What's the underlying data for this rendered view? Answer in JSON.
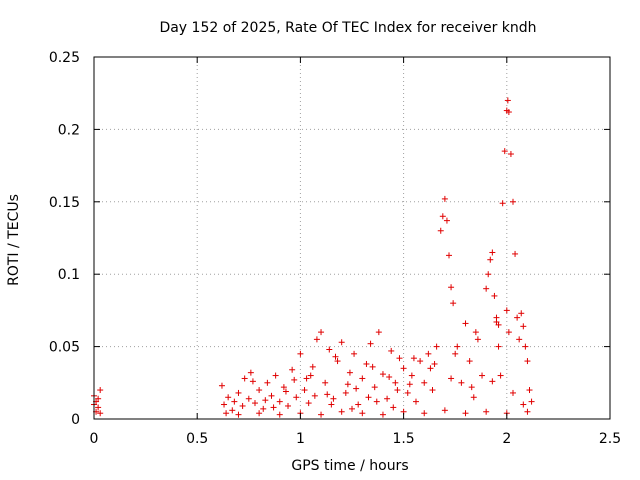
{
  "chart_data": {
    "type": "scatter",
    "title": "Day 152 of 2025, Rate Of TEC Index for receiver kndh",
    "xlabel": "GPS time / hours",
    "ylabel": "ROTI / TECUs",
    "xlim": [
      0,
      2.5
    ],
    "ylim": [
      0,
      0.25
    ],
    "xticks": [
      "0",
      "0.5",
      "1",
      "1.5",
      "2",
      "2.5"
    ],
    "yticks": [
      "0",
      "0.05",
      "0.1",
      "0.15",
      "0.2",
      "0.25"
    ],
    "grid": true,
    "marker": "plus",
    "color": "#e00000",
    "points": [
      [
        0.0,
        0.016
      ],
      [
        0.01,
        0.012
      ],
      [
        0.02,
        0.008
      ],
      [
        0.01,
        0.005
      ],
      [
        0.03,
        0.02
      ],
      [
        0.02,
        0.014
      ],
      [
        0.0,
        0.01
      ],
      [
        0.03,
        0.004
      ],
      [
        0.62,
        0.023
      ],
      [
        0.63,
        0.01
      ],
      [
        0.65,
        0.015
      ],
      [
        0.67,
        0.006
      ],
      [
        0.68,
        0.012
      ],
      [
        0.7,
        0.018
      ],
      [
        0.72,
        0.009
      ],
      [
        0.73,
        0.028
      ],
      [
        0.75,
        0.014
      ],
      [
        0.76,
        0.032
      ],
      [
        0.78,
        0.011
      ],
      [
        0.8,
        0.02
      ],
      [
        0.82,
        0.007
      ],
      [
        0.84,
        0.025
      ],
      [
        0.86,
        0.016
      ],
      [
        0.88,
        0.03
      ],
      [
        0.9,
        0.012
      ],
      [
        0.92,
        0.022
      ],
      [
        0.94,
        0.009
      ],
      [
        0.96,
        0.034
      ],
      [
        0.98,
        0.015
      ],
      [
        1.0,
        0.045
      ],
      [
        1.02,
        0.02
      ],
      [
        1.04,
        0.011
      ],
      [
        1.06,
        0.036
      ],
      [
        1.08,
        0.055
      ],
      [
        1.1,
        0.06
      ],
      [
        1.12,
        0.025
      ],
      [
        1.14,
        0.048
      ],
      [
        1.16,
        0.014
      ],
      [
        1.18,
        0.04
      ],
      [
        1.2,
        0.053
      ],
      [
        1.22,
        0.018
      ],
      [
        1.24,
        0.032
      ],
      [
        1.26,
        0.045
      ],
      [
        1.28,
        0.01
      ],
      [
        1.3,
        0.028
      ],
      [
        1.32,
        0.038
      ],
      [
        1.34,
        0.052
      ],
      [
        1.36,
        0.022
      ],
      [
        1.38,
        0.06
      ],
      [
        1.4,
        0.031
      ],
      [
        1.42,
        0.014
      ],
      [
        1.44,
        0.047
      ],
      [
        1.46,
        0.025
      ],
      [
        1.48,
        0.042
      ],
      [
        1.5,
        0.035
      ],
      [
        1.52,
        0.018
      ],
      [
        1.54,
        0.03
      ],
      [
        1.56,
        0.012
      ],
      [
        1.58,
        0.04
      ],
      [
        1.6,
        0.025
      ],
      [
        1.62,
        0.045
      ],
      [
        1.64,
        0.02
      ],
      [
        1.66,
        0.05
      ],
      [
        1.68,
        0.13
      ],
      [
        1.69,
        0.14
      ],
      [
        1.7,
        0.152
      ],
      [
        1.71,
        0.137
      ],
      [
        1.72,
        0.113
      ],
      [
        1.73,
        0.091
      ],
      [
        1.74,
        0.08
      ],
      [
        1.76,
        0.05
      ],
      [
        1.78,
        0.025
      ],
      [
        1.8,
        0.066
      ],
      [
        1.82,
        0.04
      ],
      [
        1.84,
        0.015
      ],
      [
        1.86,
        0.055
      ],
      [
        1.88,
        0.03
      ],
      [
        1.9,
        0.09
      ],
      [
        1.91,
        0.1
      ],
      [
        1.92,
        0.11
      ],
      [
        1.93,
        0.115
      ],
      [
        1.94,
        0.085
      ],
      [
        1.95,
        0.067
      ],
      [
        1.96,
        0.05
      ],
      [
        1.97,
        0.03
      ],
      [
        1.98,
        0.149
      ],
      [
        1.99,
        0.185
      ],
      [
        2.0,
        0.213
      ],
      [
        2.005,
        0.22
      ],
      [
        2.01,
        0.212
      ],
      [
        2.02,
        0.183
      ],
      [
        2.03,
        0.15
      ],
      [
        2.04,
        0.114
      ],
      [
        2.05,
        0.07
      ],
      [
        2.06,
        0.055
      ],
      [
        2.07,
        0.073
      ],
      [
        2.08,
        0.064
      ],
      [
        2.09,
        0.05
      ],
      [
        2.1,
        0.04
      ],
      [
        2.11,
        0.02
      ],
      [
        2.12,
        0.012
      ],
      [
        2.0,
        0.075
      ],
      [
        2.01,
        0.06
      ],
      [
        1.96,
        0.065
      ],
      [
        0.64,
        0.004
      ],
      [
        0.7,
        0.003
      ],
      [
        0.8,
        0.004
      ],
      [
        0.9,
        0.003
      ],
      [
        1.0,
        0.004
      ],
      [
        1.1,
        0.003
      ],
      [
        1.2,
        0.005
      ],
      [
        1.3,
        0.004
      ],
      [
        1.4,
        0.003
      ],
      [
        1.5,
        0.005
      ],
      [
        1.6,
        0.004
      ],
      [
        1.7,
        0.006
      ],
      [
        1.8,
        0.004
      ],
      [
        1.9,
        0.005
      ],
      [
        2.0,
        0.004
      ],
      [
        2.1,
        0.005
      ],
      [
        0.77,
        0.026
      ],
      [
        0.83,
        0.013
      ],
      [
        0.93,
        0.019
      ],
      [
        1.03,
        0.028
      ],
      [
        1.13,
        0.017
      ],
      [
        1.23,
        0.024
      ],
      [
        1.33,
        0.015
      ],
      [
        1.43,
        0.029
      ],
      [
        1.53,
        0.024
      ],
      [
        1.63,
        0.035
      ],
      [
        1.73,
        0.028
      ],
      [
        1.83,
        0.022
      ],
      [
        1.93,
        0.026
      ],
      [
        2.03,
        0.018
      ],
      [
        2.08,
        0.01
      ],
      [
        1.45,
        0.008
      ],
      [
        1.55,
        0.042
      ],
      [
        1.65,
        0.038
      ],
      [
        1.75,
        0.045
      ],
      [
        1.85,
        0.06
      ],
      [
        1.95,
        0.07
      ],
      [
        1.05,
        0.03
      ],
      [
        1.15,
        0.01
      ],
      [
        1.25,
        0.007
      ],
      [
        1.35,
        0.036
      ],
      [
        0.87,
        0.008
      ],
      [
        0.97,
        0.027
      ],
      [
        1.07,
        0.016
      ],
      [
        1.17,
        0.043
      ],
      [
        1.27,
        0.021
      ],
      [
        1.37,
        0.012
      ],
      [
        1.47,
        0.02
      ]
    ]
  }
}
